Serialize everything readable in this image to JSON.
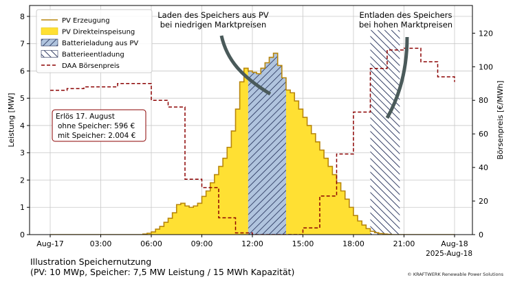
{
  "chart_data": {
    "type": "area",
    "x_unit": "hours",
    "x_tick_labels": [
      "Aug-17",
      "03:00",
      "06:00",
      "09:00",
      "12:00",
      "15:00",
      "18:00",
      "21:00",
      "Aug-18"
    ],
    "x_offset_label": "2025-Aug-18",
    "ylabel": "Leistung [MW]",
    "ylim": [
      0,
      8.4
    ],
    "yticks": [
      0,
      1,
      2,
      3,
      4,
      5,
      6,
      7,
      8
    ],
    "y2label": "Börsenpreis [€/MWh]",
    "y2lim": [
      0,
      136.5
    ],
    "y2ticks": [
      0,
      20,
      40,
      60,
      80,
      100,
      120
    ],
    "grid": true,
    "legend_position": "upper-left",
    "legend": [
      {
        "key": "pv",
        "label": "PV Erzeugung",
        "style": "line",
        "color": "#b8860b"
      },
      {
        "key": "direct",
        "label": "PV Direkteinspeisung",
        "style": "fill",
        "color": "#ffe033"
      },
      {
        "key": "charge",
        "label": "Batterieladung aus PV",
        "style": "hatch-light",
        "color": "#b0c4de"
      },
      {
        "key": "discharge",
        "label": "Batterieentladung",
        "style": "hatch-dark",
        "color": "#ffffff"
      },
      {
        "key": "price",
        "label": "DAA Börsenpreis",
        "style": "dashed",
        "color": "#8b0000"
      }
    ],
    "pv_generation_mw": {
      "x": [
        5.5,
        5.75,
        6.0,
        6.25,
        6.5,
        6.75,
        7.0,
        7.25,
        7.5,
        7.75,
        8.0,
        8.25,
        8.5,
        8.75,
        9.0,
        9.25,
        9.5,
        9.75,
        10.0,
        10.25,
        10.5,
        10.75,
        11.0,
        11.25,
        11.5,
        11.75,
        12.0,
        12.25,
        12.5,
        12.75,
        13.0,
        13.25,
        13.5,
        13.75,
        14.0,
        14.25,
        14.5,
        14.75,
        15.0,
        15.25,
        15.5,
        15.75,
        16.0,
        16.25,
        16.5,
        16.75,
        17.0,
        17.25,
        17.5,
        17.75,
        18.0,
        18.25,
        18.5,
        18.75,
        19.0,
        19.25,
        19.5,
        19.75,
        20.0,
        20.25
      ],
      "y": [
        0.02,
        0.05,
        0.1,
        0.2,
        0.3,
        0.45,
        0.6,
        0.8,
        1.1,
        1.15,
        1.05,
        1.0,
        1.05,
        1.15,
        1.4,
        1.6,
        1.9,
        2.2,
        2.5,
        2.8,
        3.2,
        3.8,
        4.6,
        5.6,
        6.1,
        6.0,
        5.95,
        5.9,
        6.1,
        6.3,
        6.5,
        6.65,
        6.2,
        5.75,
        5.3,
        5.2,
        4.9,
        4.6,
        4.3,
        4.0,
        3.7,
        3.4,
        3.1,
        2.8,
        2.5,
        2.2,
        1.9,
        1.6,
        1.3,
        1.0,
        0.7,
        0.5,
        0.35,
        0.22,
        0.12,
        0.07,
        0.04,
        0.02,
        0.01,
        0.0
      ]
    },
    "battery_charging_window": {
      "start": 11.75,
      "end": 14.0
    },
    "battery_discharging_window": {
      "start": 19.0,
      "end": 20.75,
      "power_mw": 7.5
    },
    "day_ahead_price_eur_mwh": {
      "x": [
        0,
        1,
        2,
        3,
        4,
        5,
        6,
        7,
        8,
        9,
        10,
        11,
        12,
        13,
        14,
        15,
        16,
        17,
        18,
        19,
        20,
        21,
        22,
        23,
        24
      ],
      "y": [
        86,
        87,
        88,
        88,
        90,
        90,
        80,
        76,
        33,
        28,
        10,
        1,
        0,
        0,
        0,
        4,
        23,
        48,
        73,
        99,
        110,
        111,
        103,
        94,
        91
      ]
    },
    "annotations": {
      "charge": [
        "Laden des Speichers aus PV",
        "bei niedrigen Marktpreisen"
      ],
      "discharge": [
        "Entladen des Speichers",
        "bei hohen Marktpreisen"
      ]
    },
    "revenue_box": {
      "title": "Erlös 17. August",
      "without_storage": "ohne Speicher: 596 €",
      "with_storage": "mit Speicher: 2.004 €"
    }
  },
  "footer": {
    "title": "Illustration Speichernutzung",
    "subtitle": "(PV: 10 MWp, Speicher: 7,5 MW Leistung / 15 MWh Kapazität)",
    "copyright": "© KRAFTWERK Renewable Power Solutions"
  }
}
